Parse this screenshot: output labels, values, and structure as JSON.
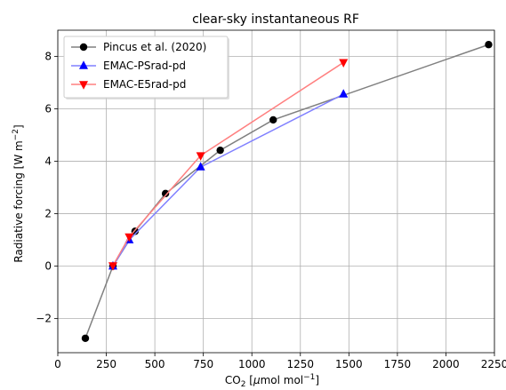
{
  "chart_data": {
    "type": "line",
    "title": "clear-sky instantaneous RF",
    "xlabel": {
      "base": "CO",
      "sub": "2",
      "unit_open": " [",
      "unit_italic": "μ",
      "unit_mid": "mol mol",
      "unit_sup": "−1",
      "unit_close": "]"
    },
    "ylabel": {
      "main": "Radiative forcing [W m",
      "sup": "−2",
      "close": "]"
    },
    "xlim": [
      0,
      2250
    ],
    "ylim": [
      -3.3,
      9.0
    ],
    "xticks": [
      0,
      250,
      500,
      750,
      1000,
      1250,
      1500,
      1750,
      2000,
      2250
    ],
    "yticks": [
      -2,
      0,
      2,
      4,
      6,
      8
    ],
    "ytick_labels": [
      "−2",
      "0",
      "2",
      "4",
      "6",
      "8"
    ],
    "grid": true,
    "legend_position": "top-left",
    "series": [
      {
        "name": "Pincus et al. (2020)",
        "color": "#808080",
        "marker_color": "#000000",
        "marker": "circle",
        "x": [
          142,
          284,
          398,
          555,
          837,
          1110,
          2220
        ],
        "y": [
          -2.75,
          0.0,
          1.33,
          2.77,
          4.42,
          5.58,
          8.45
        ]
      },
      {
        "name": "EMAC-PSrad-pd",
        "color": "#8080ff",
        "marker_color": "#0000ff",
        "marker": "triangle-up",
        "x": [
          284,
          368,
          736,
          1472
        ],
        "y": [
          0.0,
          1.0,
          3.78,
          6.56
        ]
      },
      {
        "name": "EMAC-E5rad-pd",
        "color": "#ff8080",
        "marker_color": "#ff0000",
        "marker": "triangle-down",
        "x": [
          284,
          368,
          736,
          1472
        ],
        "y": [
          0.02,
          1.12,
          4.22,
          7.77
        ]
      }
    ]
  }
}
